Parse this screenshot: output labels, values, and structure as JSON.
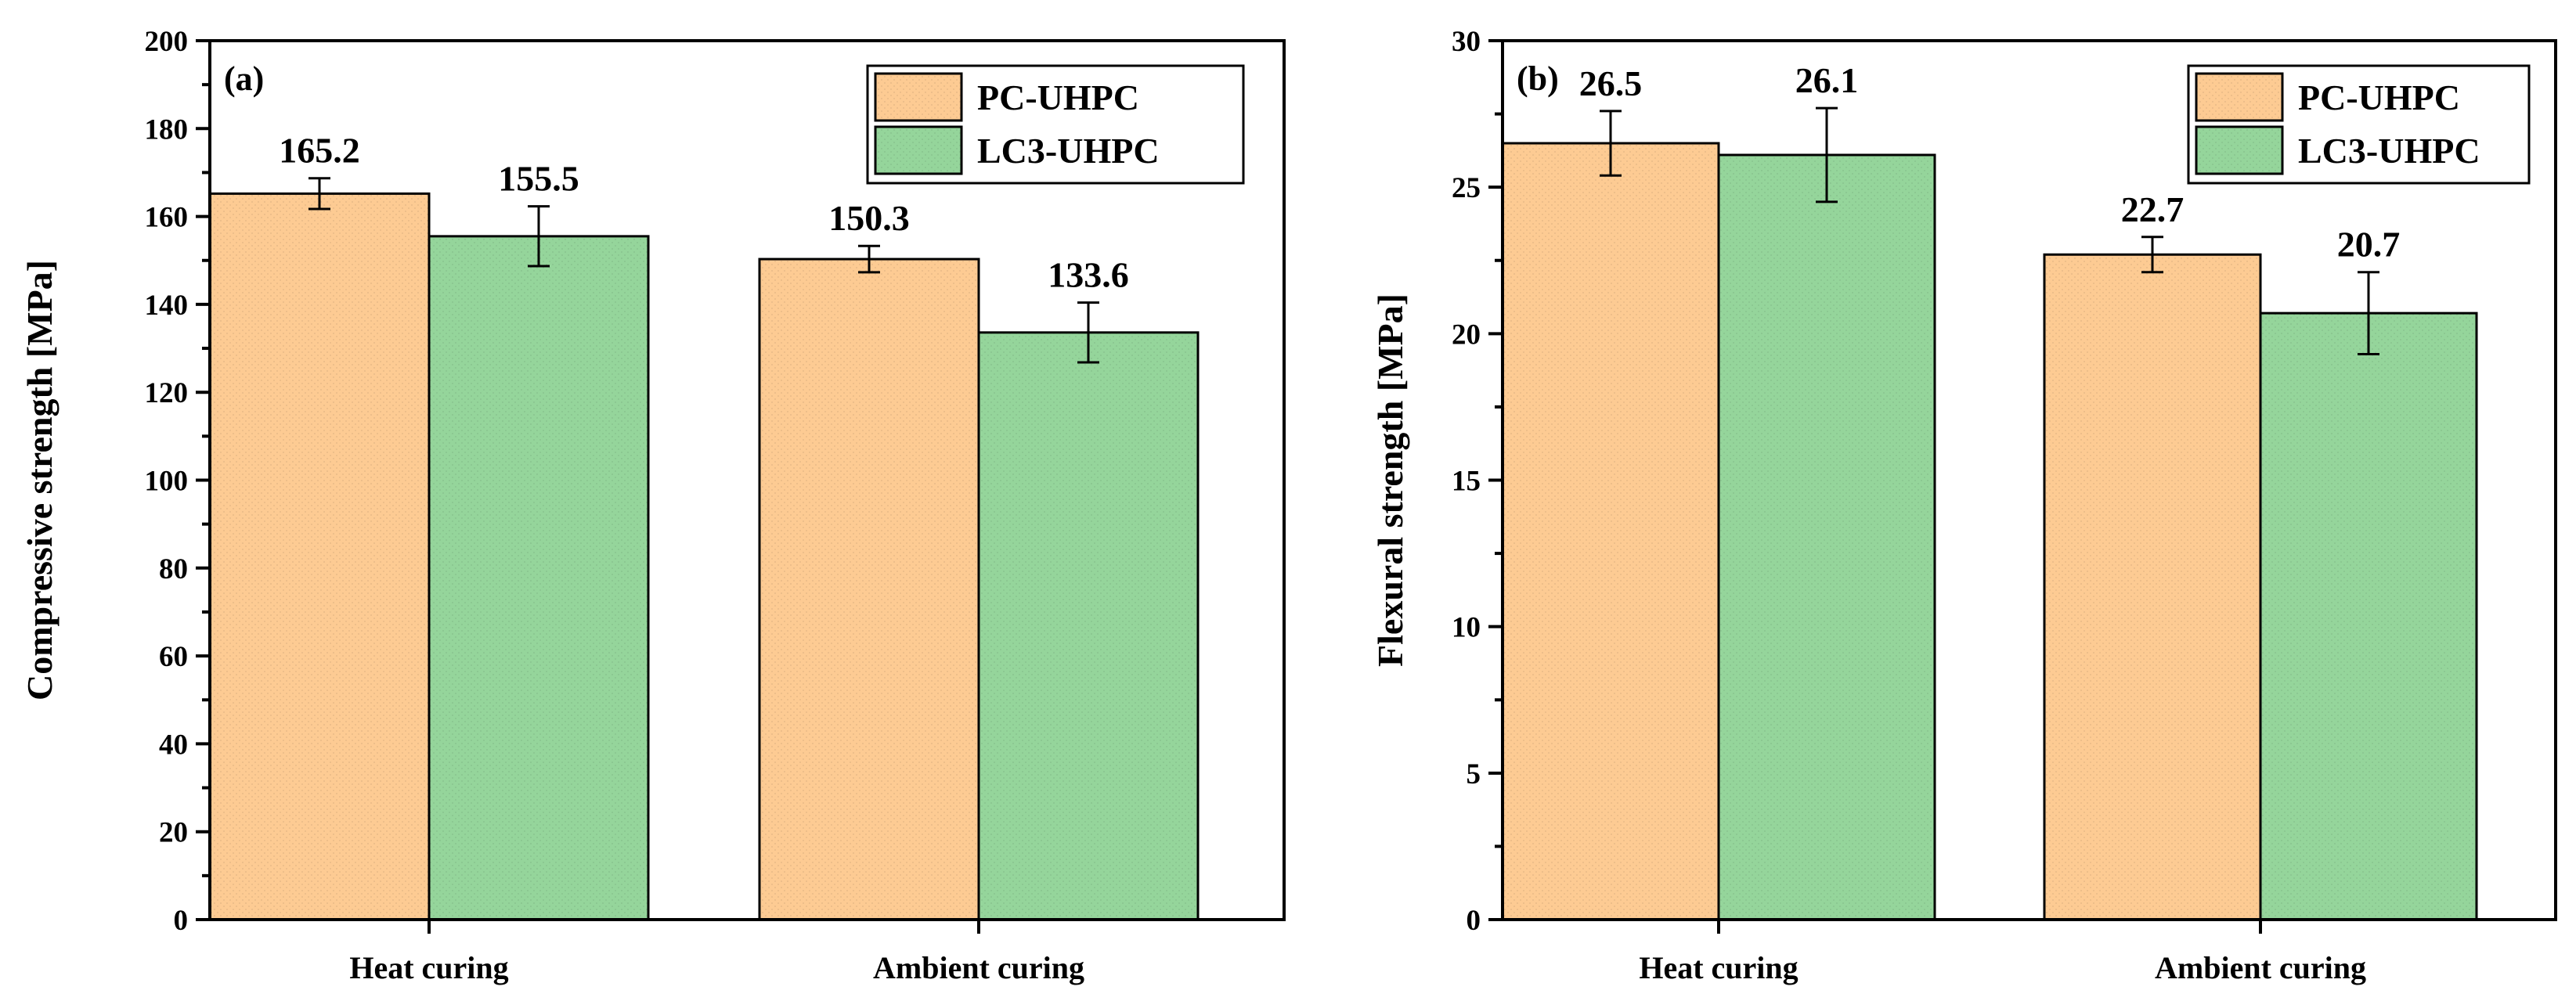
{
  "chart_data": [
    {
      "type": "bar",
      "panel_label": "(a)",
      "categories": [
        "Heat curing",
        "Ambient curing"
      ],
      "ylabel": "Compressive strength [MPa]",
      "ylim": [
        0,
        200
      ],
      "yticks": [
        0,
        20,
        40,
        60,
        80,
        100,
        120,
        140,
        160,
        180,
        200
      ],
      "legend_position": "top-right",
      "series": [
        {
          "name": "PC-UHPC",
          "color": "#fdcb93",
          "values": [
            165.2,
            150.3
          ],
          "errors": [
            3.5,
            3.0
          ],
          "labels": [
            "165.2",
            "150.3"
          ]
        },
        {
          "name": "LC3-UHPC",
          "color": "#95d59b",
          "values": [
            155.5,
            133.6
          ],
          "errors": [
            6.8,
            6.8
          ],
          "labels": [
            "155.5",
            "133.6"
          ]
        }
      ]
    },
    {
      "type": "bar",
      "panel_label": "(b)",
      "categories": [
        "Heat curing",
        "Ambient curing"
      ],
      "ylabel": "Flexural strength [MPa]",
      "ylim": [
        0,
        30
      ],
      "yticks": [
        0,
        5,
        10,
        15,
        20,
        25,
        30
      ],
      "legend_position": "top-right",
      "series": [
        {
          "name": "PC-UHPC",
          "color": "#fdcb93",
          "values": [
            26.5,
            22.7
          ],
          "errors": [
            1.1,
            0.6
          ],
          "labels": [
            "26.5",
            "22.7"
          ]
        },
        {
          "name": "LC3-UHPC",
          "color": "#95d59b",
          "values": [
            26.1,
            20.7
          ],
          "errors": [
            1.6,
            1.4
          ],
          "labels": [
            "26.1",
            "20.7"
          ]
        }
      ]
    }
  ]
}
